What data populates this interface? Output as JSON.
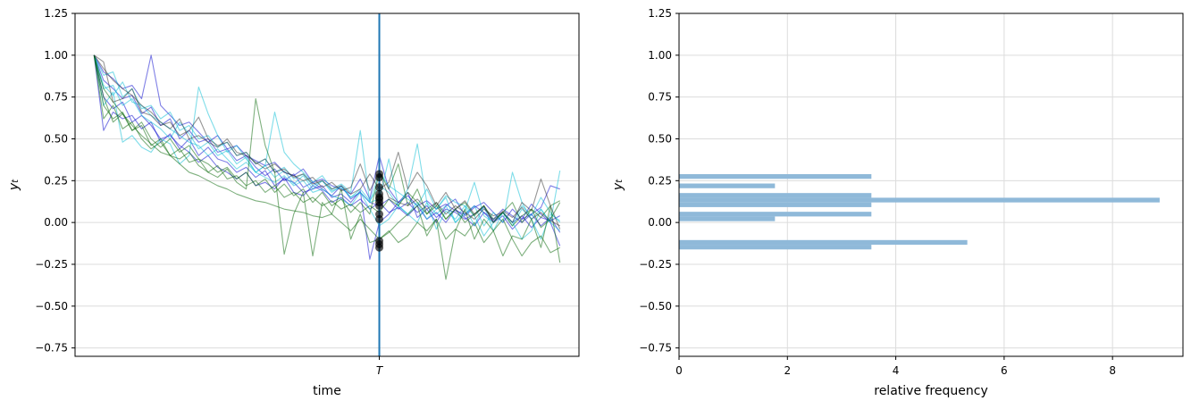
{
  "chart_data": [
    {
      "type": "line",
      "xlabel": "time",
      "ylabel_base": "y",
      "ylabel_sub": "t",
      "ylim": [
        -0.8,
        1.25
      ],
      "yticks": [
        1.25,
        1.0,
        0.75,
        0.5,
        0.25,
        0.0,
        -0.25,
        -0.5,
        -0.75
      ],
      "ytick_labels": [
        "1.25",
        "1.00",
        "0.75",
        "0.50",
        "0.25",
        "0.00",
        "−0.25",
        "−0.50",
        "−0.75"
      ],
      "xlim": [
        -2,
        51
      ],
      "vline_x": 30,
      "vline_label": "T",
      "vline_color": "#1f77b4",
      "grid": "horizontal",
      "series": [
        {
          "color": "#0000cd",
          "values": [
            1.0,
            0.75,
            0.68,
            0.72,
            0.6,
            0.64,
            0.58,
            0.5,
            0.52,
            0.46,
            0.42,
            0.36,
            0.4,
            0.33,
            0.3,
            0.26,
            0.3,
            0.22,
            0.24,
            0.2,
            0.27,
            0.18,
            0.16,
            0.22,
            0.19,
            0.12,
            0.15,
            0.1,
            0.14,
            0.08,
            0.12,
            0.06,
            0.09,
            0.04,
            0.1,
            0.02,
            0.06,
            0.0,
            0.08,
            0.03,
            -0.02,
            0.06,
            0.0,
            0.04,
            -0.04,
            0.02,
            0.05,
            -0.02,
            0.03,
            -0.06
          ]
        },
        {
          "color": "#0000cd",
          "values": [
            1.0,
            0.55,
            0.66,
            0.62,
            0.64,
            0.56,
            0.6,
            0.48,
            0.53,
            0.44,
            0.5,
            0.4,
            0.45,
            0.38,
            0.36,
            0.3,
            0.33,
            0.27,
            0.31,
            0.22,
            0.26,
            0.24,
            0.18,
            0.2,
            0.22,
            0.15,
            0.17,
            0.12,
            0.19,
            -0.22,
            0.0,
            0.05,
            0.12,
            0.18,
            0.03,
            0.08,
            0.0,
            0.1,
            0.14,
            0.04,
            0.09,
            0.12,
            0.06,
            0.0,
            0.08,
            0.02,
            0.11,
            0.05,
            0.0,
            -0.14
          ]
        },
        {
          "color": "#0000cd",
          "values": [
            1.0,
            0.85,
            0.8,
            0.74,
            0.76,
            0.65,
            0.69,
            0.58,
            0.62,
            0.5,
            0.55,
            0.48,
            0.5,
            0.42,
            0.44,
            0.37,
            0.4,
            0.33,
            0.28,
            0.32,
            0.25,
            0.29,
            0.21,
            0.24,
            0.2,
            0.16,
            0.22,
            0.14,
            0.18,
            0.12,
            0.1,
            0.14,
            0.08,
            0.12,
            0.06,
            0.1,
            0.03,
            0.08,
            0.06,
            0.02,
            0.05,
            0.09,
            0.01,
            0.06,
            0.0,
            0.04,
            -0.03,
            0.03,
            0.01,
            0.04
          ]
        },
        {
          "color": "#0000cd",
          "values": [
            1.0,
            0.9,
            0.86,
            0.8,
            0.82,
            0.74,
            1.0,
            0.7,
            0.64,
            0.58,
            0.6,
            0.54,
            0.48,
            0.52,
            0.44,
            0.46,
            0.4,
            0.37,
            0.34,
            0.36,
            0.3,
            0.28,
            0.32,
            0.24,
            0.26,
            0.22,
            0.2,
            0.17,
            0.26,
            0.14,
            0.4,
            0.2,
            0.12,
            0.16,
            0.1,
            0.13,
            0.08,
            0.11,
            0.07,
            0.05,
            0.1,
            0.06,
            0.02,
            0.08,
            0.04,
            0.0,
            0.05,
            0.09,
            0.22,
            0.2
          ]
        },
        {
          "color": "#00bcd4",
          "values": [
            1.0,
            0.8,
            0.82,
            0.7,
            0.74,
            0.64,
            0.6,
            0.56,
            0.5,
            0.6,
            0.53,
            0.44,
            0.48,
            0.4,
            0.43,
            0.35,
            0.39,
            0.3,
            0.34,
            0.27,
            0.31,
            0.23,
            0.28,
            0.2,
            0.25,
            0.18,
            0.22,
            0.15,
            0.2,
            0.13,
            0.22,
            0.18,
            0.1,
            0.05,
            0.12,
            0.02,
            0.08,
            0.15,
            0.0,
            0.05,
            0.1,
            -0.02,
            0.06,
            0.0,
            0.3,
            0.12,
            0.02,
            0.08,
            0.0,
            0.31
          ]
        },
        {
          "color": "#00bcd4",
          "values": [
            1.0,
            0.7,
            0.78,
            0.48,
            0.52,
            0.45,
            0.42,
            0.5,
            0.47,
            0.35,
            0.4,
            0.81,
            0.65,
            0.52,
            0.42,
            0.46,
            0.38,
            0.3,
            0.34,
            0.66,
            0.42,
            0.35,
            0.3,
            0.24,
            0.28,
            0.2,
            0.23,
            0.18,
            0.55,
            0.12,
            0.3,
            0.22,
            0.18,
            0.14,
            0.1,
            0.2,
            0.08,
            0.16,
            0.12,
            0.1,
            -0.02,
            0.1,
            -0.05,
            0.06,
            0.0,
            -0.1,
            -0.05,
            0.08,
            0.0,
            -0.05
          ]
        },
        {
          "color": "#00bcd4",
          "values": [
            1.0,
            0.82,
            0.76,
            0.84,
            0.72,
            0.7,
            0.64,
            0.6,
            0.56,
            0.52,
            0.48,
            0.46,
            0.4,
            0.44,
            0.38,
            0.32,
            0.36,
            0.3,
            0.27,
            0.24,
            0.28,
            0.22,
            0.25,
            0.18,
            0.2,
            0.16,
            0.14,
            0.1,
            0.18,
            0.08,
            -0.02,
            0.02,
            0.1,
            0.05,
            0.0,
            0.12,
            -0.04,
            0.07,
            0.02,
            0.1,
            0.04,
            -0.08,
            0.0,
            0.06,
            -0.02,
            0.08,
            0.02,
            -0.1,
            0.05,
            0.01
          ]
        },
        {
          "color": "#00bcd4",
          "values": [
            1.0,
            0.88,
            0.9,
            0.75,
            0.8,
            0.68,
            0.7,
            0.62,
            0.66,
            0.55,
            0.58,
            0.5,
            0.52,
            0.45,
            0.48,
            0.4,
            0.42,
            0.35,
            0.38,
            0.3,
            0.33,
            0.26,
            0.29,
            0.22,
            0.25,
            0.19,
            0.21,
            0.15,
            0.18,
            0.12,
            0.14,
            0.38,
            0.1,
            0.2,
            0.47,
            0.12,
            0.05,
            0.1,
            0.0,
            0.07,
            0.24,
            0.04,
            0.0,
            0.06,
            0.0,
            0.1,
            0.04,
            0.15,
            0.06,
            0.0
          ]
        },
        {
          "color": "#006400",
          "values": [
            1.0,
            0.62,
            0.7,
            0.56,
            0.6,
            0.5,
            0.44,
            0.48,
            0.4,
            0.38,
            0.42,
            0.34,
            0.3,
            0.27,
            0.32,
            0.24,
            0.2,
            0.74,
            0.46,
            0.3,
            -0.19,
            0.05,
            0.18,
            -0.2,
            0.12,
            0.05,
            0.2,
            -0.1,
            0.05,
            -0.12,
            -0.1,
            -0.06,
            0.0,
            0.05,
            0.1,
            -0.08,
            0.02,
            -0.34,
            -0.05,
            0.08,
            -0.1,
            0.02,
            -0.05,
            -0.2,
            -0.08,
            -0.1,
            0.02,
            -0.15,
            0.1,
            -0.24
          ]
        },
        {
          "color": "#006400",
          "values": [
            1.0,
            0.75,
            0.6,
            0.65,
            0.55,
            0.6,
            0.5,
            0.45,
            0.5,
            0.42,
            0.46,
            0.38,
            0.35,
            0.3,
            0.33,
            0.26,
            0.3,
            0.22,
            0.26,
            0.18,
            0.23,
            0.16,
            0.2,
            0.12,
            0.18,
            0.1,
            0.14,
            0.06,
            0.12,
            0.05,
            0.3,
            0.2,
            0.35,
            0.1,
            0.2,
            0.05,
            0.12,
            0.02,
            0.08,
            0.0,
            0.05,
            0.1,
            0.02,
            0.06,
            -0.02,
            0.04,
            0.08,
            -0.03,
            0.02,
            0.12
          ]
        },
        {
          "color": "#006400",
          "values": [
            1.0,
            0.8,
            0.72,
            0.65,
            0.58,
            0.52,
            0.47,
            0.42,
            0.4,
            0.35,
            0.3,
            0.28,
            0.25,
            0.22,
            0.2,
            0.17,
            0.15,
            0.13,
            0.12,
            0.1,
            0.08,
            0.07,
            0.06,
            0.04,
            0.03,
            0.05,
            0.0,
            -0.05,
            0.02,
            -0.04,
            -0.1,
            -0.05,
            -0.12,
            -0.08,
            0.0,
            -0.05,
            0.02,
            -0.1,
            -0.04,
            -0.08,
            0.0,
            -0.12,
            -0.05,
            0.02,
            -0.1,
            -0.2,
            -0.12,
            -0.08,
            -0.18,
            -0.15
          ]
        },
        {
          "color": "#006400",
          "values": [
            1.0,
            0.7,
            0.62,
            0.66,
            0.55,
            0.58,
            0.46,
            0.5,
            0.4,
            0.44,
            0.36,
            0.38,
            0.3,
            0.34,
            0.26,
            0.28,
            0.22,
            0.25,
            0.18,
            0.22,
            0.15,
            0.18,
            0.12,
            0.15,
            0.1,
            0.13,
            0.08,
            0.11,
            0.06,
            0.1,
            0.06,
            0.14,
            0.1,
            0.18,
            0.12,
            0.05,
            0.1,
            0.02,
            0.08,
            0.12,
            0.04,
            0.1,
            0.0,
            0.06,
            0.12,
            0.0,
            0.08,
            0.03,
            0.1,
            0.13
          ]
        },
        {
          "color": "#2f2f2f",
          "values": [
            1.0,
            0.96,
            0.72,
            0.74,
            0.8,
            0.66,
            0.64,
            0.58,
            0.6,
            0.52,
            0.55,
            0.63,
            0.5,
            0.46,
            0.48,
            0.4,
            0.42,
            0.35,
            0.38,
            0.3,
            0.32,
            0.27,
            0.29,
            0.23,
            0.25,
            0.2,
            0.22,
            0.17,
            0.2,
            0.29,
            0.2,
            0.24,
            0.42,
            0.2,
            0.3,
            0.22,
            0.1,
            0.18,
            0.08,
            0.13,
            0.05,
            0.1,
            0.0,
            0.07,
            0.03,
            0.09,
            0.02,
            0.06,
            0.01,
            -0.02
          ]
        },
        {
          "color": "#2f2f2f",
          "values": [
            1.0,
            0.92,
            0.85,
            0.8,
            0.76,
            0.7,
            0.66,
            0.6,
            0.56,
            0.62,
            0.5,
            0.52,
            0.48,
            0.45,
            0.5,
            0.42,
            0.4,
            0.36,
            0.32,
            0.35,
            0.3,
            0.28,
            0.25,
            0.27,
            0.21,
            0.24,
            0.19,
            0.21,
            0.35,
            0.19,
            0.3,
            0.15,
            0.12,
            0.1,
            0.14,
            0.08,
            0.12,
            0.05,
            0.1,
            0.06,
            0.02,
            0.08,
            0.04,
            0.06,
            0.0,
            0.12,
            0.07,
            0.26,
            0.1,
            -0.04
          ]
        }
      ],
      "markers_at_T": [
        0.29,
        0.27,
        0.21,
        0.17,
        0.15,
        0.14,
        0.12,
        0.1,
        0.05,
        0.02,
        -0.11,
        -0.13,
        -0.15
      ]
    },
    {
      "type": "bar",
      "orientation": "horizontal",
      "xlabel": "relative frequency",
      "ylabel_base": "y",
      "ylabel_sub": "t",
      "xlim": [
        0,
        9.3
      ],
      "xticks": [
        0,
        2,
        4,
        6,
        8
      ],
      "xtick_labels": [
        "0",
        "2",
        "4",
        "6",
        "8"
      ],
      "ylim": [
        -0.8,
        1.25
      ],
      "yticks": [
        1.25,
        1.0,
        0.75,
        0.5,
        0.25,
        0.0,
        -0.25,
        -0.5,
        -0.75
      ],
      "ytick_labels": [
        "1.25",
        "1.00",
        "0.75",
        "0.50",
        "0.25",
        "0.00",
        "−0.25",
        "−0.50",
        "−0.75"
      ],
      "grid": "both",
      "bar_color": "#8fb9d9",
      "bars": [
        {
          "low": 0.261,
          "high": 0.289,
          "value": 3.55
        },
        {
          "low": 0.205,
          "high": 0.233,
          "value": 1.77
        },
        {
          "low": 0.148,
          "high": 0.176,
          "value": 3.55
        },
        {
          "low": 0.12,
          "high": 0.148,
          "value": 8.87
        },
        {
          "low": 0.092,
          "high": 0.12,
          "value": 3.55
        },
        {
          "low": 0.036,
          "high": 0.064,
          "value": 3.55
        },
        {
          "low": 0.008,
          "high": 0.036,
          "value": 1.77
        },
        {
          "low": -0.133,
          "high": -0.105,
          "value": 5.32
        },
        {
          "low": -0.161,
          "high": -0.133,
          "value": 3.55
        }
      ]
    }
  ]
}
